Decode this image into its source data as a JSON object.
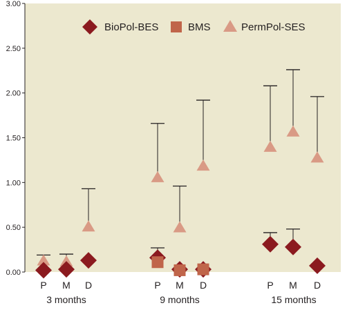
{
  "chart_data": {
    "type": "scatter",
    "title": "",
    "xlabel": "",
    "ylabel": "",
    "ylim": [
      0,
      3.0
    ],
    "yticks": [
      "0.00",
      "0.50",
      "1.00",
      "1.50",
      "2.00",
      "2.50",
      "3.00"
    ],
    "grid": false,
    "legend_position": "top-right",
    "groups": [
      "3 months",
      "9 months",
      "15 months"
    ],
    "subcategories": [
      "P",
      "M",
      "D"
    ],
    "series": [
      {
        "name": "BioPol-BES",
        "marker": "diamond",
        "color": "#8b1a1f",
        "values": [
          [
            0.02,
            0.03,
            0.13
          ],
          [
            0.16,
            0.03,
            0.03
          ],
          [
            0.31,
            0.28,
            0.07
          ]
        ],
        "upper": [
          [
            null,
            null,
            null
          ],
          [
            0.27,
            null,
            null
          ],
          [
            0.44,
            0.48,
            null
          ]
        ]
      },
      {
        "name": "BMS",
        "marker": "square",
        "color": "#c0654a",
        "values": [
          [
            null,
            null,
            null
          ],
          [
            0.11,
            0.02,
            0.03
          ],
          [
            null,
            null,
            null
          ]
        ],
        "upper": [
          [
            null,
            null,
            null
          ],
          [
            null,
            null,
            null
          ],
          [
            null,
            null,
            null
          ]
        ]
      },
      {
        "name": "PermPol-SES",
        "marker": "triangle",
        "color": "#d99a85",
        "values": [
          [
            0.12,
            0.11,
            0.5
          ],
          [
            1.05,
            0.49,
            1.18
          ],
          [
            1.39,
            1.56,
            1.27
          ]
        ],
        "upper": [
          [
            0.19,
            0.2,
            0.93
          ],
          [
            1.66,
            0.96,
            1.92
          ],
          [
            2.08,
            2.26,
            1.96
          ]
        ]
      }
    ]
  }
}
